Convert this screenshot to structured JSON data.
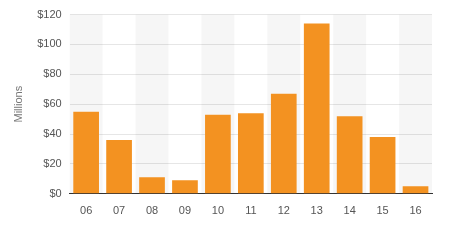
{
  "chart_data": {
    "type": "bar",
    "y_label": "Millions",
    "categories": [
      "06",
      "07",
      "08",
      "09",
      "10",
      "11",
      "12",
      "13",
      "14",
      "15",
      "16"
    ],
    "values": [
      55,
      36,
      11,
      9,
      53,
      54,
      67,
      114,
      52,
      38,
      5
    ],
    "color": "#f39221",
    "ylim": [
      0,
      120
    ],
    "yticks": [
      {
        "value": 0,
        "label": "$0"
      },
      {
        "value": 20,
        "label": "$20"
      },
      {
        "value": 40,
        "label": "$40"
      },
      {
        "value": 60,
        "label": "$60"
      },
      {
        "value": 80,
        "label": "$80"
      },
      {
        "value": 100,
        "label": "$100"
      },
      {
        "value": 120,
        "label": "$120"
      }
    ],
    "grid": true
  }
}
